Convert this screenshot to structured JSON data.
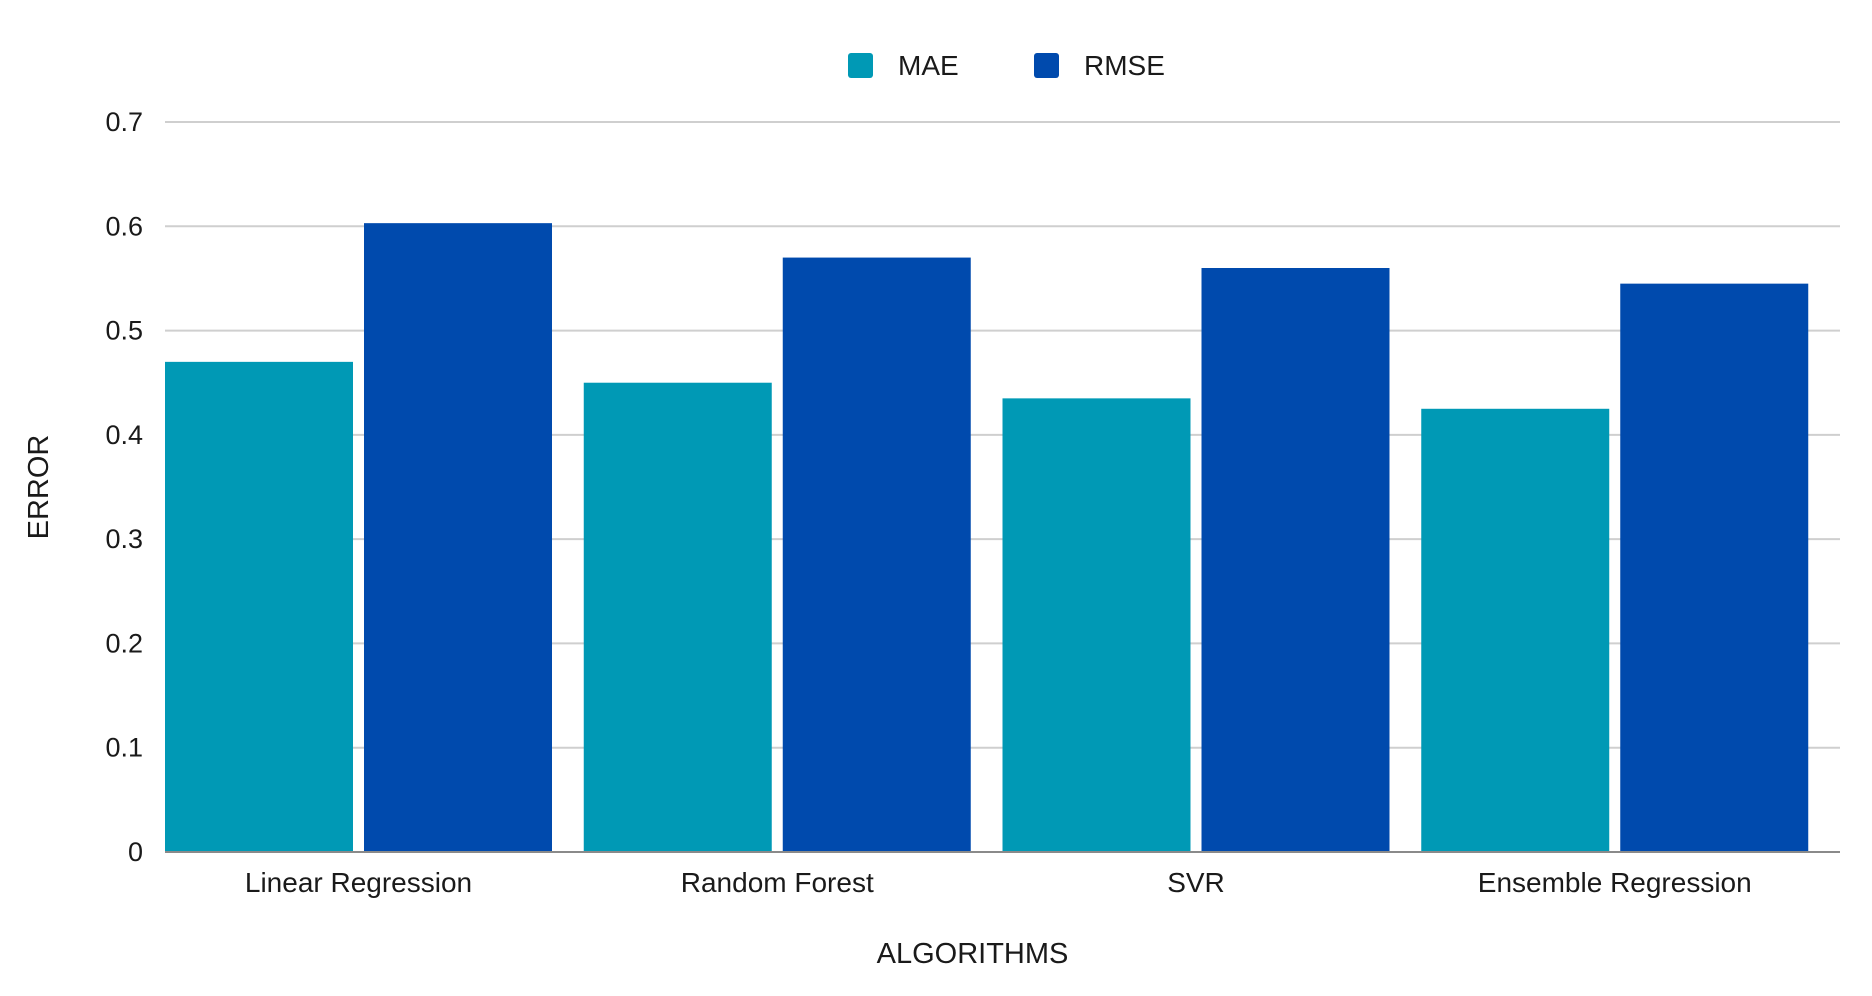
{
  "chart_data": {
    "type": "bar",
    "title": "",
    "xlabel": "ALGORITHMS",
    "ylabel": "ERROR",
    "categories": [
      "Linear Regression",
      "Random Forest",
      "SVR",
      "Ensemble Regression"
    ],
    "series": [
      {
        "name": "MAE",
        "color": "#0099B5",
        "values": [
          0.47,
          0.45,
          0.435,
          0.425
        ]
      },
      {
        "name": "RMSE",
        "color": "#004AAD",
        "values": [
          0.603,
          0.57,
          0.56,
          0.545
        ]
      }
    ],
    "ylim": [
      0,
      0.7
    ],
    "yticks": [
      "0",
      "0.1",
      "0.2",
      "0.3",
      "0.4",
      "0.5",
      "0.6",
      "0.7"
    ],
    "grid": true,
    "legend_position": "top-center"
  }
}
